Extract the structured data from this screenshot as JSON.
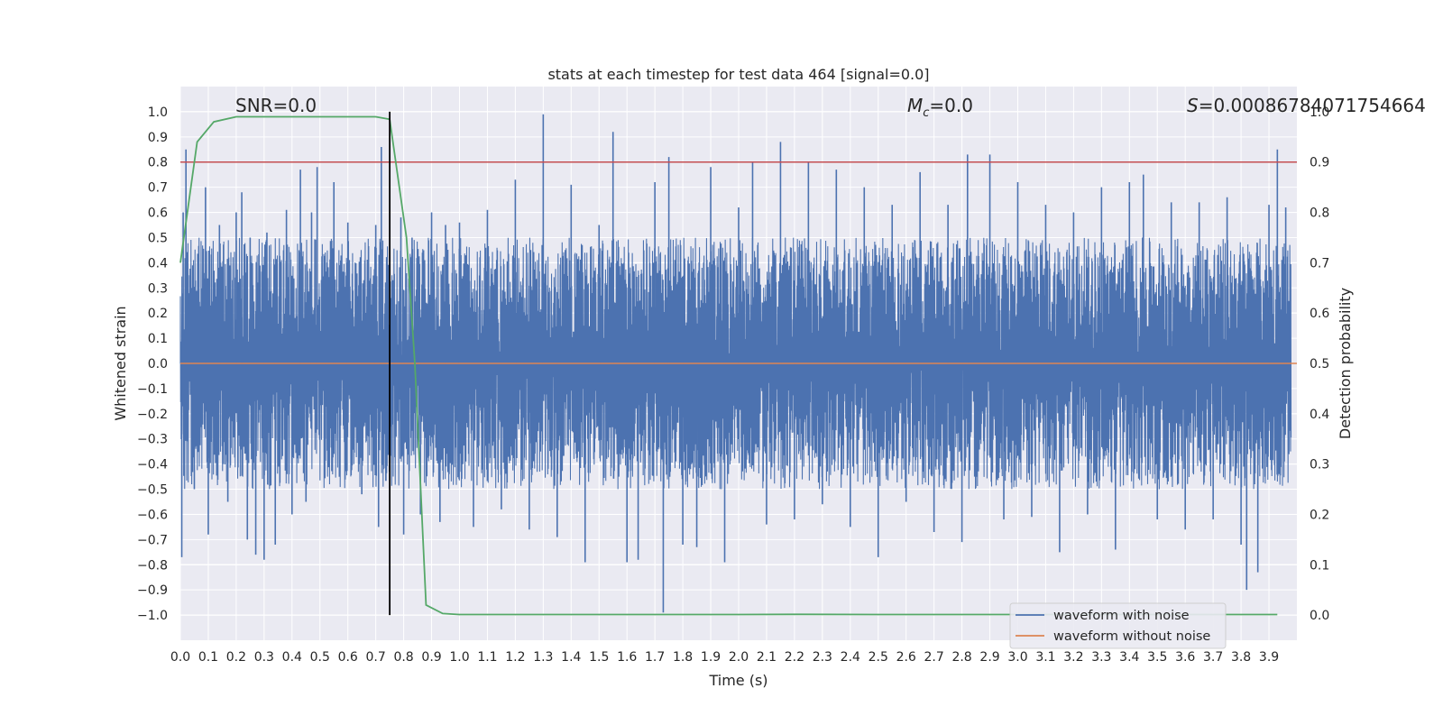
{
  "chart_data": {
    "type": "line",
    "title": "stats at each timestep for test data 464 [signal=0.0]",
    "xlabel": "Time (s)",
    "ylabel": "Whitened strain",
    "y2label": "Detection probability",
    "xlim": [
      0.0,
      4.0
    ],
    "ylim": [
      -1.1,
      1.1
    ],
    "y2lim": [
      -0.05,
      1.05
    ],
    "xticks": [
      "0.0",
      "0.1",
      "0.2",
      "0.3",
      "0.4",
      "0.5",
      "0.6",
      "0.7",
      "0.8",
      "0.9",
      "1.0",
      "1.1",
      "1.2",
      "1.3",
      "1.4",
      "1.5",
      "1.6",
      "1.7",
      "1.8",
      "1.9",
      "2.0",
      "2.1",
      "2.2",
      "2.3",
      "2.4",
      "2.5",
      "2.6",
      "2.7",
      "2.8",
      "2.9",
      "3.0",
      "3.1",
      "3.2",
      "3.3",
      "3.4",
      "3.5",
      "3.6",
      "3.7",
      "3.8",
      "3.9"
    ],
    "yticks": [
      "1.0",
      "0.9",
      "0.8",
      "0.7",
      "0.6",
      "0.5",
      "0.4",
      "0.3",
      "0.2",
      "0.1",
      "0.0",
      "−0.1",
      "−0.2",
      "−0.3",
      "−0.4",
      "−0.5",
      "−0.6",
      "−0.7",
      "−0.8",
      "−0.9",
      "−1.0"
    ],
    "y2ticks": [
      "1.0",
      "0.9",
      "0.8",
      "0.7",
      "0.6",
      "0.5",
      "0.4",
      "0.3",
      "0.2",
      "0.1",
      "0.0"
    ],
    "grid": true,
    "legend_position": "bottom-right",
    "annotations": {
      "snr": "SNR=0.0",
      "mc_symbol": "M",
      "mc_sub": "c",
      "mc_value": "=0.0",
      "s_symbol": "S",
      "s_value": "=0.00086784071754664"
    },
    "series": [
      {
        "name": "waveform with noise",
        "axis": "left",
        "color": "#4c72b0",
        "description_range": [
          -1.0,
          1.0
        ]
      },
      {
        "name": "waveform without noise",
        "axis": "left",
        "color": "#dd8452",
        "x": [
          0.0,
          4.0
        ],
        "values": [
          0.0,
          0.0
        ]
      },
      {
        "axis": "right",
        "color": "#55a868",
        "x": [
          0.0,
          0.06,
          0.12,
          0.2,
          0.3,
          0.5,
          0.7,
          0.75,
          0.81,
          0.84,
          0.88,
          0.94,
          1.0,
          1.5,
          2.0,
          2.2,
          2.5,
          3.0,
          3.5,
          3.93
        ],
        "values": [
          0.7,
          0.94,
          0.98,
          0.99,
          0.99,
          0.99,
          0.99,
          0.985,
          0.75,
          0.5,
          0.02,
          0.003,
          0.001,
          0.001,
          0.001,
          0.0015,
          0.001,
          0.001,
          0.001,
          0.001
        ]
      }
    ],
    "threshold_line": {
      "axis": "right",
      "value": 0.9,
      "color": "#c44e52"
    },
    "marker_line": {
      "x": 0.75,
      "y_from": -1.0,
      "y_to": 1.0,
      "color": "#000000"
    },
    "noise_spikes": [
      [
        0.005,
        -0.77
      ],
      [
        0.01,
        0.6
      ],
      [
        0.02,
        0.85
      ],
      [
        0.04,
        0.3
      ],
      [
        0.05,
        -0.5
      ],
      [
        0.09,
        0.7
      ],
      [
        0.1,
        -0.68
      ],
      [
        0.14,
        0.55
      ],
      [
        0.17,
        -0.55
      ],
      [
        0.2,
        0.6
      ],
      [
        0.22,
        0.68
      ],
      [
        0.24,
        -0.7
      ],
      [
        0.25,
        0.5
      ],
      [
        0.27,
        -0.76
      ],
      [
        0.3,
        -0.78
      ],
      [
        0.31,
        0.52
      ],
      [
        0.34,
        -0.72
      ],
      [
        0.38,
        0.61
      ],
      [
        0.4,
        -0.6
      ],
      [
        0.43,
        0.77
      ],
      [
        0.45,
        -0.55
      ],
      [
        0.47,
        0.6
      ],
      [
        0.49,
        0.78
      ],
      [
        0.52,
        -0.3
      ],
      [
        0.55,
        0.72
      ],
      [
        0.6,
        0.56
      ],
      [
        0.65,
        -0.52
      ],
      [
        0.7,
        0.55
      ],
      [
        0.71,
        -0.65
      ],
      [
        0.72,
        0.86
      ],
      [
        0.79,
        0.58
      ],
      [
        0.8,
        -0.68
      ],
      [
        0.83,
        0.5
      ],
      [
        0.86,
        -0.6
      ],
      [
        0.9,
        0.6
      ],
      [
        0.93,
        -0.63
      ],
      [
        0.95,
        0.55
      ],
      [
        1.0,
        0.56
      ],
      [
        1.05,
        -0.65
      ],
      [
        1.1,
        0.61
      ],
      [
        1.15,
        -0.58
      ],
      [
        1.2,
        0.73
      ],
      [
        1.25,
        -0.66
      ],
      [
        1.3,
        0.99
      ],
      [
        1.35,
        -0.69
      ],
      [
        1.4,
        0.71
      ],
      [
        1.45,
        -0.79
      ],
      [
        1.5,
        0.55
      ],
      [
        1.55,
        0.92
      ],
      [
        1.6,
        -0.79
      ],
      [
        1.64,
        -0.78
      ],
      [
        1.7,
        0.72
      ],
      [
        1.73,
        -0.99
      ],
      [
        1.75,
        0.82
      ],
      [
        1.8,
        -0.72
      ],
      [
        1.85,
        -0.73
      ],
      [
        1.9,
        0.78
      ],
      [
        1.95,
        -0.79
      ],
      [
        2.0,
        0.62
      ],
      [
        2.05,
        0.8
      ],
      [
        2.1,
        -0.64
      ],
      [
        2.15,
        0.88
      ],
      [
        2.2,
        -0.62
      ],
      [
        2.25,
        0.8
      ],
      [
        2.3,
        -0.56
      ],
      [
        2.35,
        0.77
      ],
      [
        2.4,
        -0.65
      ],
      [
        2.45,
        0.7
      ],
      [
        2.5,
        -0.77
      ],
      [
        2.55,
        0.63
      ],
      [
        2.6,
        -0.55
      ],
      [
        2.65,
        0.76
      ],
      [
        2.7,
        -0.67
      ],
      [
        2.75,
        0.63
      ],
      [
        2.8,
        -0.71
      ],
      [
        2.82,
        0.83
      ],
      [
        2.9,
        0.83
      ],
      [
        2.95,
        -0.62
      ],
      [
        3.0,
        0.72
      ],
      [
        3.05,
        -0.61
      ],
      [
        3.1,
        0.63
      ],
      [
        3.15,
        -0.75
      ],
      [
        3.2,
        0.6
      ],
      [
        3.25,
        -0.6
      ],
      [
        3.3,
        0.7
      ],
      [
        3.35,
        -0.74
      ],
      [
        3.4,
        0.72
      ],
      [
        3.45,
        0.75
      ],
      [
        3.5,
        -0.62
      ],
      [
        3.55,
        0.64
      ],
      [
        3.6,
        -0.66
      ],
      [
        3.65,
        0.64
      ],
      [
        3.7,
        -0.62
      ],
      [
        3.75,
        0.66
      ],
      [
        3.8,
        -0.72
      ],
      [
        3.82,
        -0.9
      ],
      [
        3.86,
        -0.83
      ],
      [
        3.9,
        0.63
      ],
      [
        3.93,
        0.85
      ],
      [
        3.96,
        0.62
      ]
    ]
  },
  "legend": {
    "items": [
      {
        "label": "waveform with noise",
        "color": "#4c72b0"
      },
      {
        "label": "waveform without noise",
        "color": "#dd8452"
      }
    ]
  }
}
